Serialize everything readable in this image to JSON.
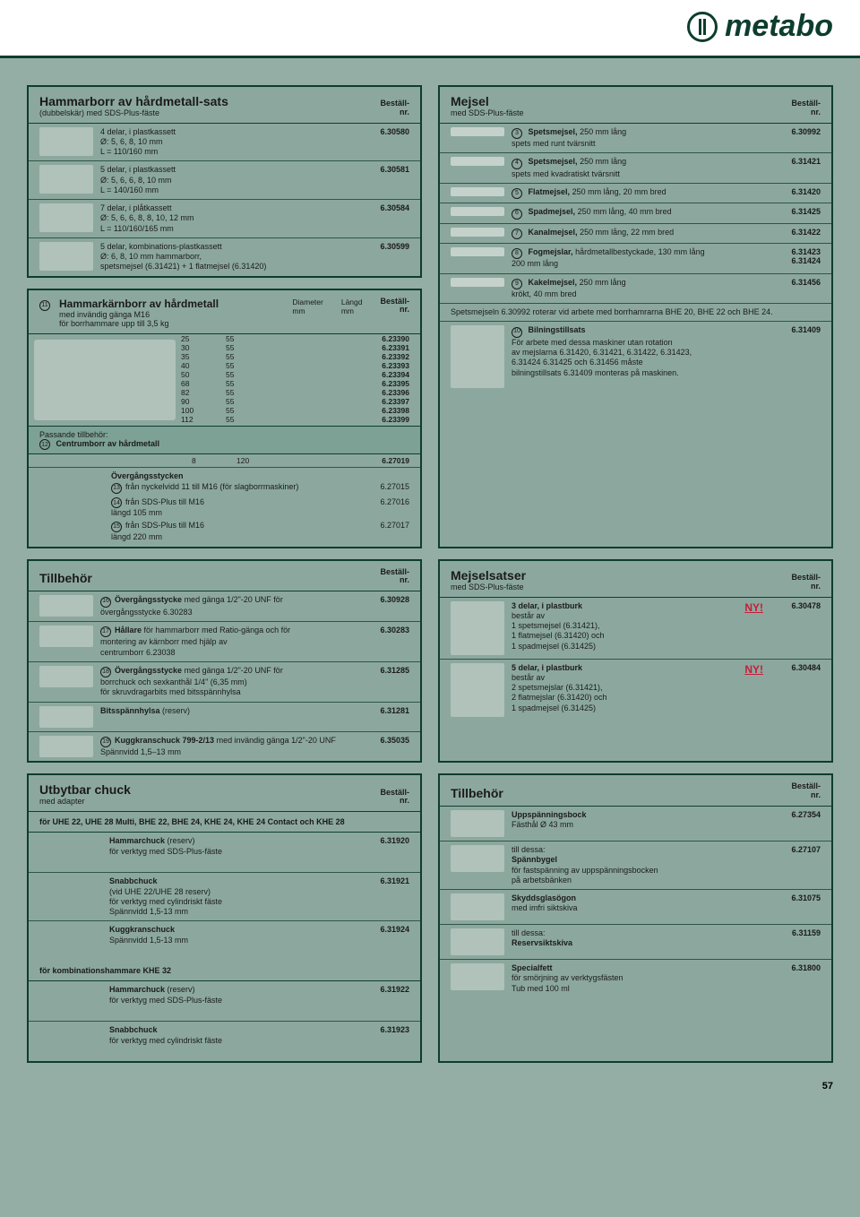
{
  "brand": "metabo",
  "page_number": "57",
  "labels": {
    "order_nr": "Beställ-",
    "nr": "nr.",
    "new": "NY!"
  },
  "hammarborr": {
    "title": "Hammarborr av hårdmetall-sats",
    "subtitle": "(dubbelskär) med SDS-Plus-fäste",
    "items": [
      {
        "desc": "4 delar, i plastkassett\nØ: 5, 6, 8, 10 mm\nL = 110/160 mm",
        "num": "6.30580"
      },
      {
        "desc": "5 delar, i plastkassett\nØ: 5, 6, 6, 8, 10 mm\nL = 140/160 mm",
        "num": "6.30581"
      },
      {
        "desc": "7 delar, i plåtkassett\nØ: 5, 6, 6, 8, 8, 10, 12 mm\nL = 110/160/165 mm",
        "num": "6.30584"
      },
      {
        "desc": "5 delar, kombinations-plastkassett\nØ: 6, 8, 10 mm hammarborr,\nspetsmejsel (6.31421) + 1 flatmejsel (6.31420)",
        "num": "6.30599"
      }
    ]
  },
  "mejsel": {
    "title": "Mejsel",
    "subtitle": "med SDS-Plus-fäste",
    "items": [
      {
        "n": "3",
        "b": "Spetsmejsel,",
        "t": "250 mm lång\nspets med runt tvärsnitt",
        "num": "6.30992"
      },
      {
        "n": "4",
        "b": "Spetsmejsel,",
        "t": "250 mm lång\nspets med kvadratiskt tvärsnitt",
        "num": "6.31421"
      },
      {
        "n": "5",
        "b": "Flatmejsel,",
        "t": "250 mm lång, 20 mm bred",
        "num": "6.31420"
      },
      {
        "n": "6",
        "b": "Spadmejsel,",
        "t": "250 mm lång, 40 mm bred",
        "num": "6.31425"
      },
      {
        "n": "7",
        "b": "Kanalmejsel,",
        "t": "250 mm lång, 22 mm bred",
        "num": "6.31422"
      },
      {
        "n": "8",
        "b": "Fogmejslar,",
        "t": "hårdmetallbestyckade, 130 mm lång\n200 mm lång",
        "num": "6.31423",
        "num2": "6.31424"
      },
      {
        "n": "9",
        "b": "Kakelmejsel,",
        "t": "250 mm lång\nkrökt, 40 mm bred",
        "num": "6.31456"
      }
    ],
    "note": "Spetsmejseln 6.30992 roterar vid arbete med borrhamrarna BHE 20, BHE 22 och BHE 24.",
    "bilning": {
      "n": "10",
      "b": "Bilningstillsats",
      "t": "För arbete med dessa maskiner utan rotation\nav mejslarna 6.31420, 6.31421, 6.31422, 6.31423,\n6.31424 6.31425 och 6.31456 måste\nbilningstillsats 6.31409 monteras på maskinen.",
      "num": "6.31409"
    }
  },
  "karnborr": {
    "title": "Hammarkärnborr av hårdmetall",
    "subtitle": "med invändig gänga M16\nför borrhammare upp till 3,5 kg",
    "cols": [
      "Diameter\nmm",
      "Längd\nmm"
    ],
    "rows": [
      [
        "25",
        "55",
        "6.23390"
      ],
      [
        "30",
        "55",
        "6.23391"
      ],
      [
        "35",
        "55",
        "6.23392"
      ],
      [
        "40",
        "55",
        "6.23393"
      ],
      [
        "50",
        "55",
        "6.23394"
      ],
      [
        "68",
        "55",
        "6.23395"
      ],
      [
        "82",
        "55",
        "6.23396"
      ],
      [
        "90",
        "55",
        "6.23397"
      ],
      [
        "100",
        "55",
        "6.23398"
      ],
      [
        "112",
        "55",
        "6.23399"
      ]
    ],
    "centr_label": "Passande tillbehör:",
    "centr_n": "12",
    "centr_b": "Centrumborr av hårdmetall",
    "centr_row": [
      "8",
      "120",
      "6.27019"
    ],
    "overgang_title": "Övergångsstycken",
    "overgang": [
      {
        "n": "13",
        "t": "från nyckelvidd 11 till M16 (för slagborrmaskiner)",
        "num": "6.27015"
      },
      {
        "n": "14",
        "t": "från SDS-Plus till M16\nlängd 105 mm",
        "num": "6.27016"
      },
      {
        "n": "15",
        "t": "från SDS-Plus till M16\nlängd 220 mm",
        "num": "6.27017"
      }
    ]
  },
  "tillbehor1": {
    "title": "Tillbehör",
    "items": [
      {
        "n": "16",
        "b": "Övergångsstycke",
        "t": "med gänga 1/2\"-20 UNF för\növergångsstycke 6.30283",
        "num": "6.30928"
      },
      {
        "n": "17",
        "b": "Hållare",
        "t": "för hammarborr med Ratio-gänga och för\nmontering av kärnborr med hjälp av\ncentrumborr 6.23038",
        "num": "6.30283"
      },
      {
        "n": "18",
        "b": "Övergångsstycke",
        "t": "med gänga 1/2\"-20 UNF för\nborrchuck och sexkanthål 1/4\" (6,35 mm)\nför skruvdragarbits med bitsspännhylsa",
        "num": "6.31285"
      },
      {
        "n": "",
        "b": "Bitsspännhylsa",
        "t": "(reserv)",
        "num": "6.31281"
      },
      {
        "n": "19",
        "b": "Kuggkranschuck 799-2/13",
        "t": "med invändig gänga 1/2\"-20 UNF\nSpännvidd 1,5–13 mm",
        "num": "6.35035"
      }
    ]
  },
  "mejselsatser": {
    "title": "Mejselsatser",
    "subtitle": "med SDS-Plus-fäste",
    "items": [
      {
        "b": "3 delar, i plastburk",
        "t": "består av\n1 spetsmejsel (6.31421),\n1 flatmejsel (6.31420) och\n1 spadmejsel (6.31425)",
        "num": "6.30478",
        "ny": true
      },
      {
        "b": "5 delar, i plastburk",
        "t": "består av\n2 spetsmejslar (6.31421),\n2 flatmejslar (6.31420) och\n1 spadmejsel (6.31425)",
        "num": "6.30484",
        "ny": true
      }
    ]
  },
  "chuck": {
    "title": "Utbytbar chuck",
    "subtitle": "med adapter",
    "group1_label": "för UHE 22, UHE 28 Multi, BHE 22, BHE 24, KHE 24, KHE 24 Contact och KHE 28",
    "group1": [
      {
        "b": "Hammarchuck",
        "r": "(reserv)",
        "t": "för verktyg med SDS-Plus-fäste",
        "num": "6.31920"
      },
      {
        "b": "Snabbchuck",
        "r": "",
        "t": "(vid UHE 22/UHE 28 reserv)\nför verktyg med cylindriskt fäste\nSpännvidd 1,5-13 mm",
        "num": "6.31921"
      },
      {
        "b": "Kuggkranschuck",
        "r": "",
        "t": "Spännvidd 1,5-13 mm",
        "num": "6.31924"
      }
    ],
    "group2_label": "för kombinationshammare KHE 32",
    "group2": [
      {
        "b": "Hammarchuck",
        "r": "(reserv)",
        "t": "för verktyg med SDS-Plus-fäste",
        "num": "6.31922"
      },
      {
        "b": "Snabbchuck",
        "r": "",
        "t": "för verktyg med cylindriskt fäste",
        "num": "6.31923"
      }
    ]
  },
  "tillbehor2": {
    "title": "Tillbehör",
    "items": [
      {
        "b": "Uppspänningsbock",
        "t": "Fästhål Ø 43 mm",
        "num": "6.27354"
      },
      {
        "b": "",
        "pre": "till dessa:",
        "bb": "Spännbygel",
        "t": "för fastspänning av uppspänningsbocken\npå arbetsbänken",
        "num": "6.27107"
      },
      {
        "b": "Skyddsglasögon",
        "t": "med imfri siktskiva",
        "num": "6.31075"
      },
      {
        "b": "",
        "pre": "till dessa:",
        "bb": "Reservsiktskiva",
        "t": "",
        "num": "6.31159"
      },
      {
        "b": "Specialfett",
        "t": "för smörjning av verktygsfästen\nTub med 100 ml",
        "num": "6.31800"
      }
    ]
  }
}
